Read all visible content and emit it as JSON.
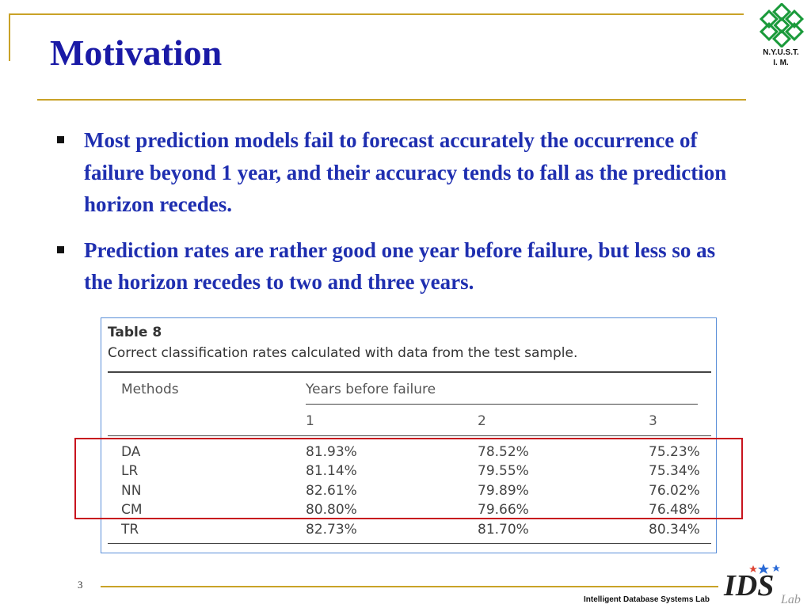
{
  "slide": {
    "title": "Motivation",
    "bullets": [
      "Most prediction models fail to forecast accurately the occurrence of failure beyond 1 year, and their accuracy tends to fall as the prediction horizon recedes.",
      "Prediction rates are rather good one year before failure, but less so as the horizon recedes to two and three years."
    ],
    "page_number": "3",
    "footer": "Intelligent Database Systems Lab"
  },
  "logo": {
    "icon": "nyust-flower-icon",
    "line1": "N.Y.U.S.T.",
    "line2": "I. M.",
    "color": "#1a9a3a"
  },
  "ids_logo": {
    "text": "IDS",
    "sub": "Lab"
  },
  "table": {
    "title": "Table 8",
    "caption": "Correct classification rates calculated with data from the test sample.",
    "methods_header": "Methods",
    "group_header": "Years before failure",
    "year_headers": [
      "1",
      "2",
      "3"
    ],
    "rows": [
      {
        "method": "DA",
        "values": [
          "81.93%",
          "78.52%",
          "75.23%"
        ]
      },
      {
        "method": "LR",
        "values": [
          "81.14%",
          "79.55%",
          "75.34%"
        ]
      },
      {
        "method": "NN",
        "values": [
          "82.61%",
          "79.89%",
          "76.02%"
        ]
      },
      {
        "method": "CM",
        "values": [
          "80.80%",
          "79.66%",
          "76.48%"
        ]
      },
      {
        "method": "TR",
        "values": [
          "82.73%",
          "81.70%",
          "80.34%"
        ]
      }
    ],
    "highlight_color": "#c8141e"
  },
  "colors": {
    "title": "#1a1aa6",
    "bullet_text": "#1f2fb0",
    "rule_gold": "#c9a227",
    "table_border": "#5a8fd8"
  }
}
